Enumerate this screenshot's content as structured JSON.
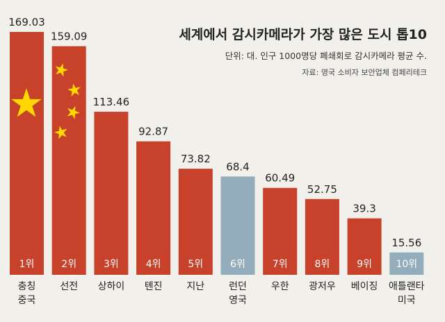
{
  "chart_data": {
    "type": "bar",
    "title": "세계에서 감시카메라가 가장 많은 도시 톱10",
    "subtitle": "단위: 대. 인구 1000명당 폐쇄회로 감시카메라 평균 수.",
    "source": "자료: 영국 소비자 보안업체 컴페리테크",
    "ylim": [
      0,
      175
    ],
    "grid": false,
    "categories": [
      [
        "충칭",
        "중국"
      ],
      [
        "선전"
      ],
      [
        "상하이"
      ],
      [
        "톈진"
      ],
      [
        "지난"
      ],
      [
        "런던",
        "영국"
      ],
      [
        "우한"
      ],
      [
        "광저우"
      ],
      [
        "베이징"
      ],
      [
        "애틀랜타",
        "미국"
      ]
    ],
    "values": [
      169.03,
      159.09,
      113.46,
      92.87,
      73.82,
      68.4,
      60.49,
      52.75,
      39.3,
      15.56
    ],
    "value_labels": [
      "169.03",
      "159.09",
      "113.46",
      "92.87",
      "73.82",
      "68.4",
      "60.49",
      "52.75",
      "39.3",
      "15.56"
    ],
    "ranks": [
      "1위",
      "2위",
      "3위",
      "4위",
      "5위",
      "6위",
      "7위",
      "8위",
      "9위",
      "10위"
    ],
    "bar_colors": [
      "#c7412b",
      "#c7412b",
      "#c7412b",
      "#c7412b",
      "#c7412b",
      "#93adbd",
      "#c7412b",
      "#c7412b",
      "#c7412b",
      "#93adbd"
    ],
    "decorations": [
      "china-flag-large-star",
      "china-flag-small-stars"
    ],
    "star_color": "#ffd800"
  }
}
